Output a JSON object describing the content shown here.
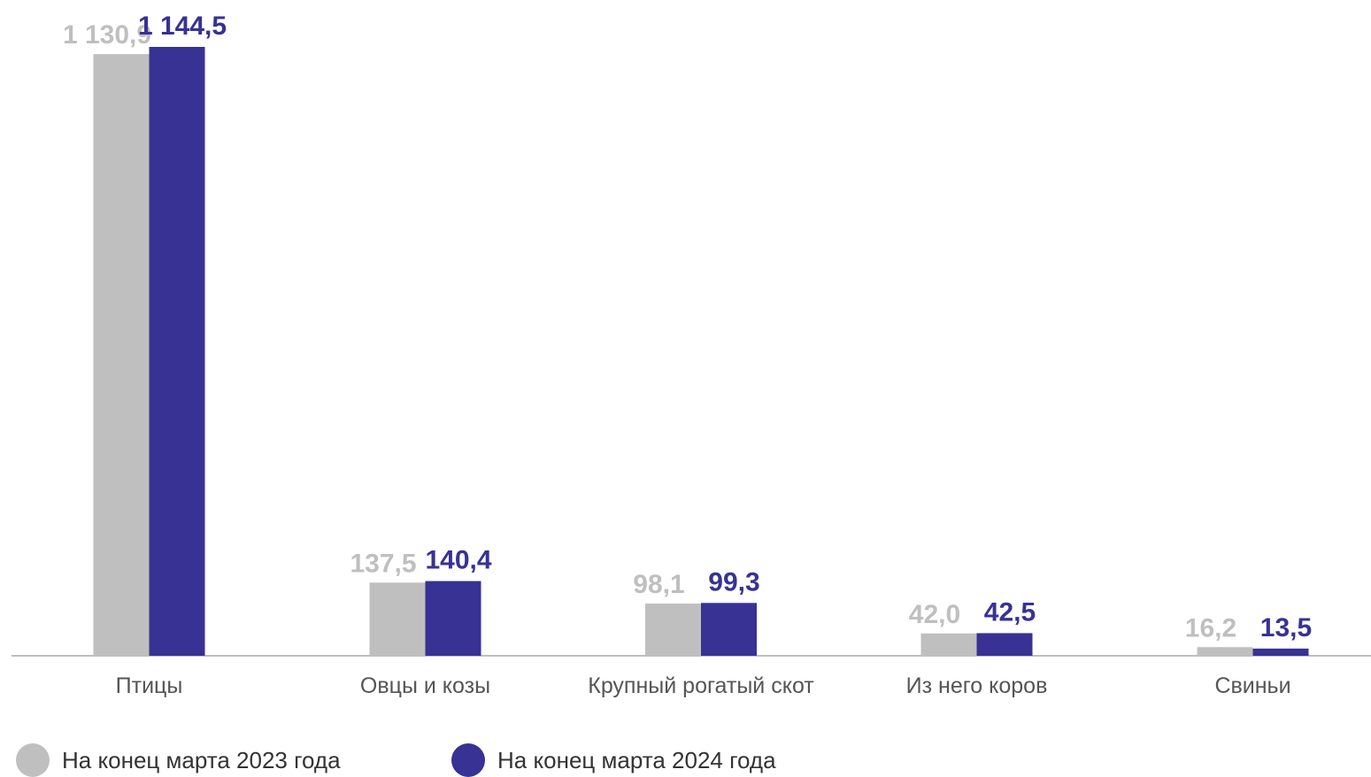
{
  "chart_data": {
    "type": "bar",
    "title": "",
    "xlabel": "",
    "ylabel": "",
    "ylim": [
      0,
      1200
    ],
    "grid": false,
    "legend_position": "bottom-left",
    "categories": [
      "Птицы",
      "Овцы и козы",
      "Крупный рогатый скот",
      "Из него коров",
      "Свиньи"
    ],
    "series": [
      {
        "name": "На конец марта 2023 года",
        "color": "#bfbfbf",
        "values": [
          1130.9,
          137.5,
          98.1,
          42.0,
          16.2
        ],
        "labels": [
          "1 130,9",
          "137,5",
          "98,1",
          "42,0",
          "16,2"
        ]
      },
      {
        "name": "На конец марта 2024 года",
        "color": "#373293",
        "values": [
          1144.5,
          140.4,
          99.3,
          42.5,
          13.5
        ],
        "labels": [
          "1 144,5",
          "140,4",
          "99,3",
          "42,5",
          "13,5"
        ]
      }
    ]
  }
}
